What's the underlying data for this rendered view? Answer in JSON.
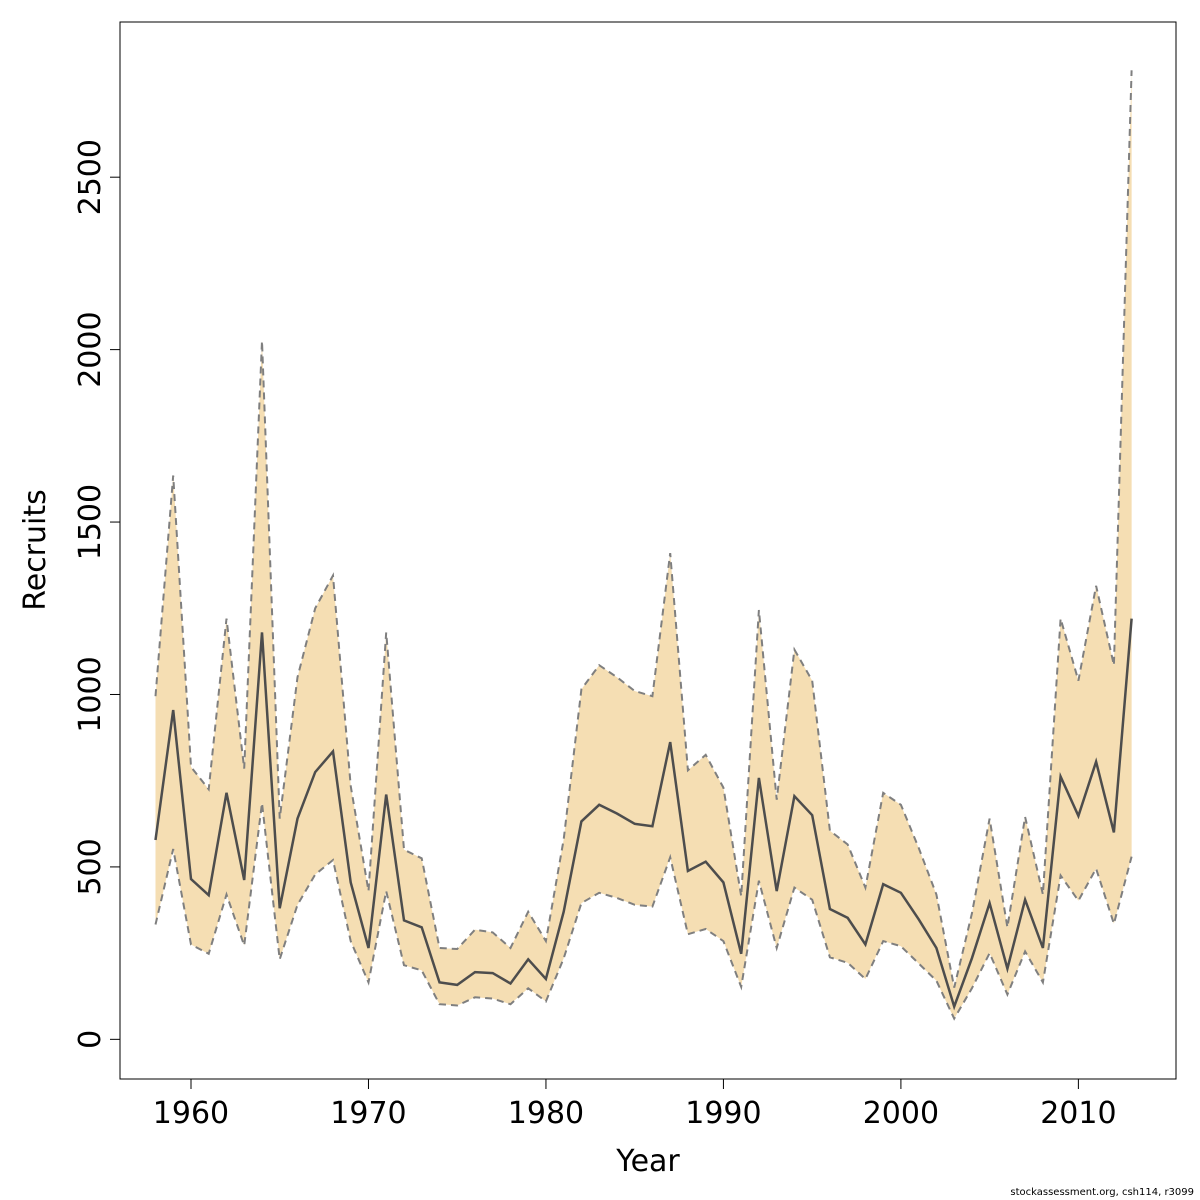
{
  "chart_data": {
    "type": "line",
    "xlabel": "Year",
    "ylabel": "Recruits",
    "xlim": [
      1956,
      2015.5
    ],
    "ylim": [
      -115,
      2950
    ],
    "xticks": [
      1960,
      1970,
      1980,
      1990,
      2000,
      2010
    ],
    "yticks": [
      0,
      500,
      1000,
      1500,
      2000,
      2500
    ],
    "grid": false,
    "colors": {
      "band": "#f5deb3",
      "line": "#4d4d4d",
      "bound": "#7f7f7f"
    },
    "series": [
      {
        "role": "estimate",
        "x": [
          1958,
          1959,
          1960,
          1961,
          1962,
          1963,
          1964,
          1965,
          1966,
          1967,
          1968,
          1969,
          1970,
          1971,
          1972,
          1973,
          1974,
          1975,
          1976,
          1977,
          1978,
          1979,
          1980,
          1981,
          1982,
          1983,
          1984,
          1985,
          1986,
          1987,
          1988,
          1989,
          1990,
          1991,
          1992,
          1993,
          1994,
          1995,
          1996,
          1997,
          1998,
          1999,
          2000,
          2001,
          2002,
          2003,
          2004,
          2005,
          2006,
          2007,
          2008,
          2009,
          2010,
          2011,
          2012,
          2013
        ],
        "values": [
          578,
          955,
          465,
          418,
          715,
          462,
          1180,
          380,
          640,
          775,
          835,
          455,
          265,
          710,
          345,
          325,
          165,
          158,
          195,
          192,
          162,
          232,
          175,
          370,
          632,
          680,
          655,
          625,
          618,
          862,
          488,
          515,
          455,
          248,
          758,
          430,
          705,
          650,
          378,
          352,
          275,
          450,
          425,
          348,
          265,
          95,
          235,
          395,
          205,
          405,
          265,
          762,
          648,
          805,
          600,
          1220
        ]
      },
      {
        "role": "upper",
        "x": [
          1958,
          1959,
          1960,
          1961,
          1962,
          1963,
          1964,
          1965,
          1966,
          1967,
          1968,
          1969,
          1970,
          1971,
          1972,
          1973,
          1974,
          1975,
          1976,
          1977,
          1978,
          1979,
          1980,
          1981,
          1982,
          1983,
          1984,
          1985,
          1986,
          1987,
          1988,
          1989,
          1990,
          1991,
          1992,
          1993,
          1994,
          1995,
          1996,
          1997,
          1998,
          1999,
          2000,
          2001,
          2002,
          2003,
          2004,
          2005,
          2006,
          2007,
          2008,
          2009,
          2010,
          2011,
          2012,
          2013
        ],
        "values": [
          995,
          1635,
          790,
          725,
          1220,
          785,
          2025,
          640,
          1050,
          1250,
          1345,
          735,
          430,
          1180,
          550,
          525,
          265,
          262,
          318,
          310,
          265,
          370,
          285,
          580,
          1015,
          1085,
          1050,
          1010,
          995,
          1410,
          780,
          825,
          730,
          415,
          1245,
          695,
          1130,
          1040,
          605,
          565,
          440,
          715,
          680,
          555,
          420,
          150,
          365,
          640,
          325,
          645,
          420,
          1220,
          1040,
          1315,
          1085,
          2810
        ]
      },
      {
        "role": "lower",
        "x": [
          1958,
          1959,
          1960,
          1961,
          1962,
          1963,
          1964,
          1965,
          1966,
          1967,
          1968,
          1969,
          1970,
          1971,
          1972,
          1973,
          1974,
          1975,
          1976,
          1977,
          1978,
          1979,
          1980,
          1981,
          1982,
          1983,
          1984,
          1985,
          1986,
          1987,
          1988,
          1989,
          1990,
          1991,
          1992,
          1993,
          1994,
          1995,
          1996,
          1997,
          1998,
          1999,
          2000,
          2001,
          2002,
          2003,
          2004,
          2005,
          2006,
          2007,
          2008,
          2009,
          2010,
          2011,
          2012,
          2013
        ],
        "values": [
          333,
          552,
          275,
          248,
          420,
          272,
          685,
          232,
          390,
          478,
          520,
          285,
          165,
          430,
          215,
          200,
          102,
          98,
          122,
          118,
          102,
          148,
          110,
          235,
          395,
          425,
          410,
          390,
          385,
          528,
          305,
          320,
          285,
          152,
          460,
          265,
          440,
          405,
          238,
          222,
          175,
          285,
          270,
          220,
          170,
          60,
          148,
          250,
          130,
          255,
          165,
          475,
          402,
          495,
          335,
          530
        ]
      }
    ]
  },
  "footer": {
    "text": "stockassessment.org, csh114, r3099"
  }
}
